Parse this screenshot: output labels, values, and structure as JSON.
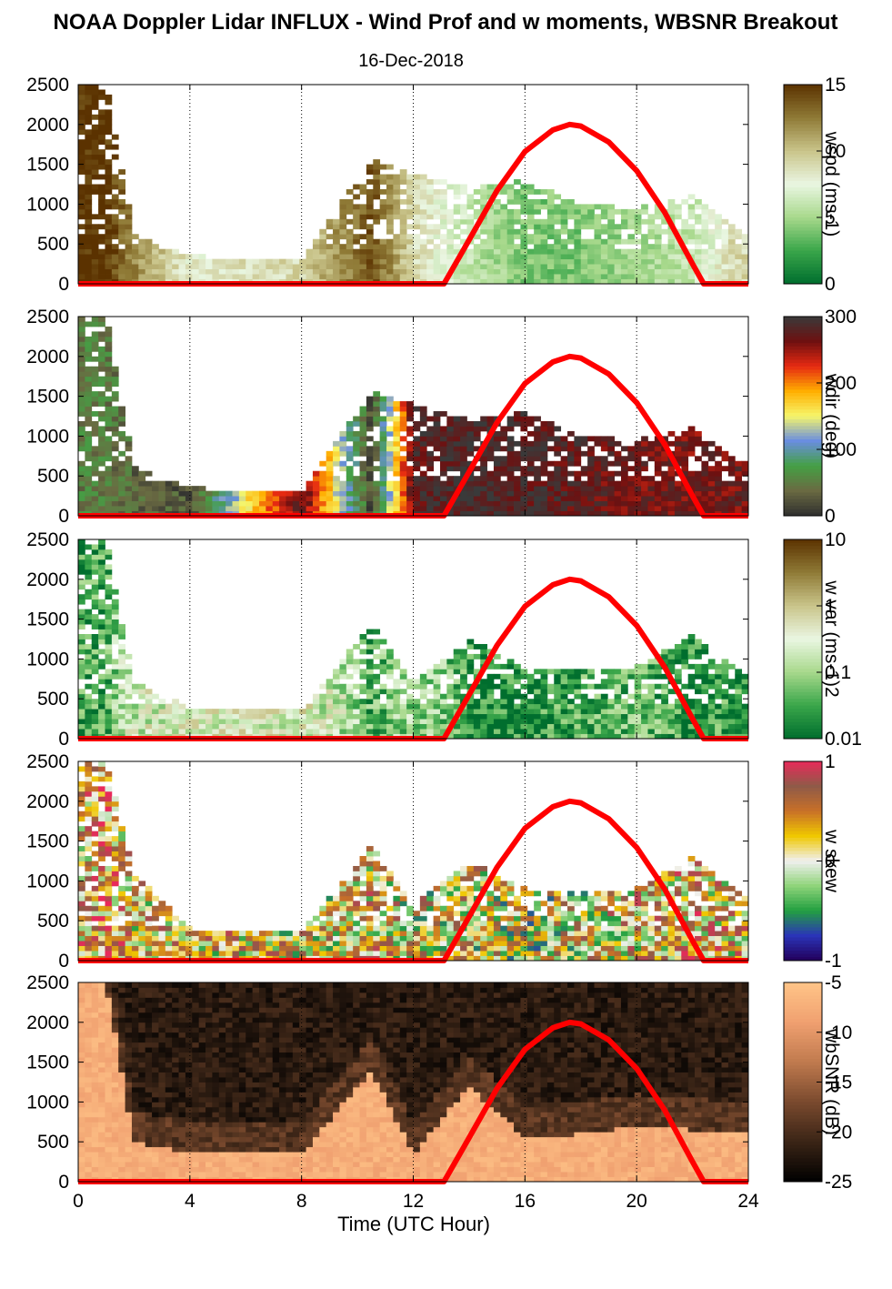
{
  "title": "NOAA Doppler Lidar INFLUX - Wind Prof and w moments, WBSNR Breakout",
  "date": "16-Dec-2018",
  "xlabel": "Time (UTC Hour)",
  "x_ticks": [
    "0",
    "4",
    "8",
    "12",
    "16",
    "20",
    "24"
  ],
  "y_ticks": [
    "0",
    "500",
    "1000",
    "1500",
    "2000",
    "2500"
  ],
  "colors": {
    "sun_curve": "#ff0000",
    "grid": "#000000"
  },
  "chart_data": [
    {
      "type": "heatmap",
      "variable": "wspd",
      "colorbar_label": "wspd (ms-1)",
      "colorbar_ticks": [
        "0",
        "5",
        "10",
        "15"
      ],
      "colorbar_range": [
        0,
        15
      ],
      "xlim": [
        0,
        24
      ],
      "ylim": [
        0,
        2500
      ],
      "grid": "vertical dotted",
      "colormap": [
        "#006e2e",
        "#3aa64a",
        "#a8d98c",
        "#eaf6e2",
        "#c9c48a",
        "#8f7a36",
        "#5b3200"
      ],
      "overlay": {
        "name": "",
        "type": "line",
        "color": "#ff0000",
        "x": [
          0,
          13.1,
          14,
          15,
          16,
          17,
          17.6,
          18,
          19,
          20,
          21,
          22,
          22.4,
          24
        ],
        "y": [
          0,
          0,
          550,
          1170,
          1660,
          1930,
          2000,
          1980,
          1780,
          1420,
          900,
          250,
          0,
          0
        ]
      },
      "description_data": {
        "x": [
          0.5,
          1,
          2,
          4,
          8,
          10.5,
          12,
          14,
          16,
          18,
          20,
          22,
          23.5
        ],
        "top_height": [
          2500,
          2500,
          600,
          350,
          300,
          1550,
          1400,
          1200,
          1300,
          1000,
          950,
          1100,
          700
        ],
        "dominant_value": [
          15,
          15,
          12,
          8,
          9,
          14,
          9,
          6,
          4,
          4,
          5,
          6,
          9
        ]
      }
    },
    {
      "type": "heatmap",
      "variable": "wdir",
      "colorbar_label": "wdir (deg)",
      "colorbar_ticks": [
        "0",
        "100",
        "200",
        "300"
      ],
      "colorbar_range": [
        0,
        360
      ],
      "xlim": [
        0,
        24
      ],
      "ylim": [
        0,
        2500
      ],
      "grid": "vertical dotted",
      "colormap": [
        "#2f2f2f",
        "#6a6a42",
        "#44a044",
        "#6a8ee0",
        "#f6f66a",
        "#ffae00",
        "#e62a12",
        "#6e1010",
        "#3a3a3a"
      ],
      "overlay": {
        "name": "",
        "type": "line",
        "color": "#ff0000",
        "x": [
          0,
          13.1,
          14,
          15,
          16,
          17,
          17.6,
          18,
          19,
          20,
          21,
          22,
          22.4,
          24
        ],
        "y": [
          0,
          0,
          550,
          1170,
          1660,
          1930,
          2000,
          1980,
          1780,
          1420,
          900,
          250,
          0,
          0
        ]
      },
      "description_data": {
        "x": [
          0.5,
          1,
          2,
          4,
          8,
          10.5,
          12,
          14,
          16,
          18,
          20,
          22,
          23.5
        ],
        "top_height": [
          2500,
          2500,
          600,
          350,
          300,
          1550,
          1400,
          1200,
          1300,
          1000,
          950,
          1100,
          700
        ],
        "dominant_value": [
          60,
          60,
          40,
          30,
          330,
          20,
          330,
          350,
          340,
          330,
          320,
          315,
          320
        ]
      }
    },
    {
      "type": "heatmap",
      "variable": "w var",
      "colorbar_label": "w var (ms-1)2",
      "colorbar_ticks": [
        "0.01",
        "0.1",
        "1",
        "10"
      ],
      "colorbar_range": [
        0.01,
        10
      ],
      "scale": "log",
      "xlim": [
        0,
        24
      ],
      "ylim": [
        0,
        2500
      ],
      "grid": "vertical dotted",
      "colormap": [
        "#006e2e",
        "#3aa64a",
        "#a8d98c",
        "#eaf6e2",
        "#c9c48a",
        "#8f7a36",
        "#5b3200"
      ],
      "overlay": {
        "name": "",
        "type": "line",
        "color": "#ff0000",
        "x": [
          0,
          13.1,
          14,
          15,
          16,
          17,
          17.6,
          18,
          19,
          20,
          21,
          22,
          22.4,
          24
        ],
        "y": [
          0,
          0,
          550,
          1170,
          1660,
          1930,
          2000,
          1980,
          1780,
          1420,
          900,
          250,
          0,
          0
        ]
      },
      "description_data": {
        "x": [
          0.5,
          1,
          2,
          4,
          8,
          10.5,
          12,
          14,
          16,
          18,
          20,
          22,
          23.5
        ],
        "top_height": [
          2500,
          2500,
          700,
          400,
          350,
          1450,
          700,
          1250,
          900,
          850,
          900,
          1300,
          900
        ],
        "dominant_value": [
          0.03,
          0.03,
          0.2,
          0.3,
          0.3,
          0.03,
          0.1,
          0.02,
          0.02,
          0.03,
          0.05,
          0.02,
          0.03
        ]
      }
    },
    {
      "type": "heatmap",
      "variable": "w skew",
      "colorbar_label": "w skew",
      "colorbar_ticks": [
        "-1",
        "0",
        "1"
      ],
      "colorbar_range": [
        -1,
        1
      ],
      "xlim": [
        0,
        24
      ],
      "ylim": [
        0,
        2500
      ],
      "grid": "vertical dotted",
      "colormap": [
        "#22005a",
        "#2a34b8",
        "#22a040",
        "#8fd47a",
        "#f0f0f0",
        "#f0c800",
        "#c87028",
        "#8f5a48",
        "#e82a5a"
      ],
      "overlay": {
        "name": "",
        "type": "line",
        "color": "#ff0000",
        "x": [
          0,
          13.1,
          14,
          15,
          16,
          17,
          17.6,
          18,
          19,
          20,
          21,
          22,
          22.4,
          24
        ],
        "y": [
          0,
          0,
          550,
          1170,
          1660,
          1930,
          2000,
          1980,
          1780,
          1420,
          900,
          250,
          0,
          0
        ]
      },
      "description_data": {
        "x": [
          0.5,
          1,
          2,
          4,
          8,
          10.5,
          12,
          14,
          16,
          18,
          20,
          22,
          23.5
        ],
        "top_height": [
          2500,
          2500,
          1100,
          400,
          350,
          1450,
          700,
          1250,
          900,
          850,
          900,
          1300,
          900
        ],
        "dominant_value": [
          0.3,
          0.5,
          0.2,
          0.2,
          0.1,
          0.2,
          0.1,
          0.1,
          0.0,
          0.1,
          0.2,
          0.3,
          0.2
        ]
      }
    },
    {
      "type": "heatmap",
      "variable": "wbSNR",
      "colorbar_label": "wbSNR (dB)",
      "colorbar_ticks": [
        "-25",
        "-20",
        "-15",
        "-10",
        "-5"
      ],
      "colorbar_range": [
        -25,
        -5
      ],
      "xlim": [
        0,
        24
      ],
      "ylim": [
        0,
        2500
      ],
      "grid": "vertical dotted",
      "colormap": [
        "#000000",
        "#3a2416",
        "#7a4a2e",
        "#c07a4e",
        "#f0a070",
        "#ffc488"
      ],
      "overlay": {
        "name": "",
        "type": "line",
        "color": "#ff0000",
        "x": [
          0,
          13.1,
          14,
          15,
          16,
          17,
          17.6,
          18,
          19,
          20,
          21,
          22,
          22.4,
          24
        ],
        "y": [
          0,
          0,
          550,
          1170,
          1660,
          1930,
          2000,
          1980,
          1780,
          1420,
          900,
          250,
          0,
          0
        ]
      },
      "description_data": {
        "x": [
          0.5,
          1,
          2,
          4,
          8,
          10.5,
          12,
          14,
          16,
          18,
          20,
          22,
          23.5
        ],
        "high_snr_top_height": [
          2500,
          2500,
          500,
          350,
          350,
          1400,
          350,
          1200,
          550,
          600,
          700,
          650,
          600
        ],
        "background_value": -24
      }
    }
  ]
}
